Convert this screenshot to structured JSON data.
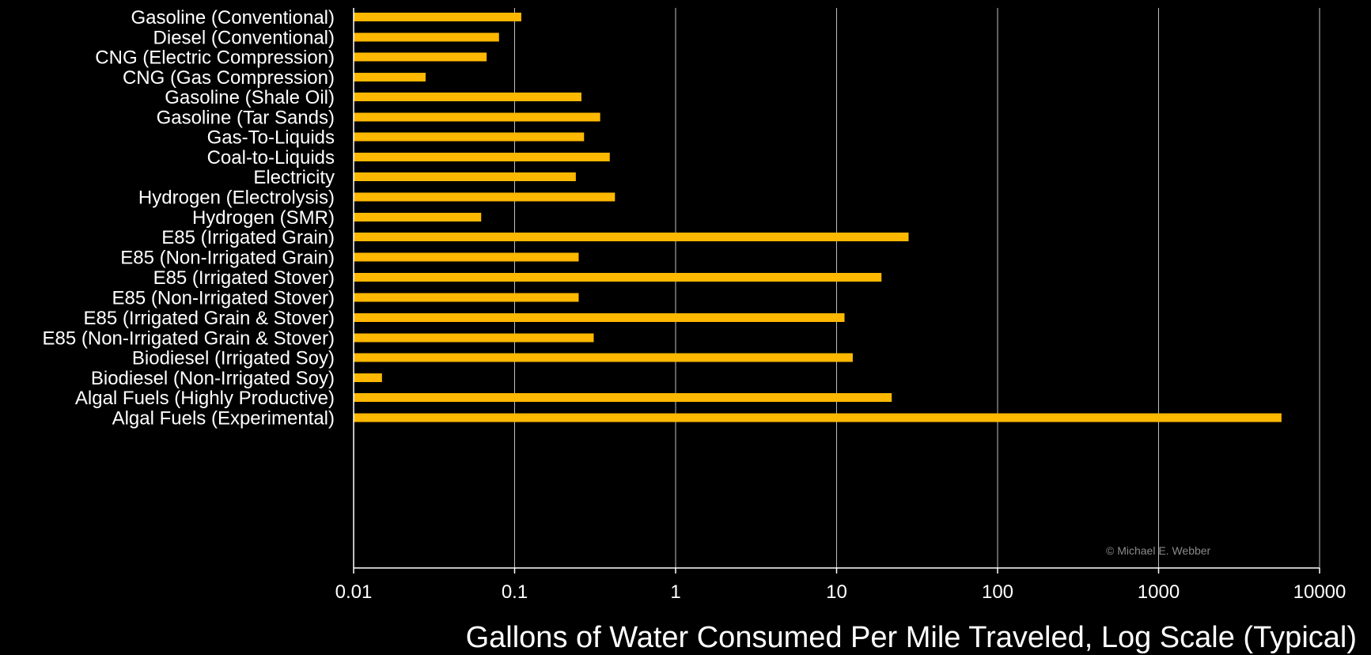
{
  "chart_data": {
    "type": "bar",
    "orientation": "horizontal",
    "xscale": "log",
    "xlim": [
      0.01,
      10000
    ],
    "xticks": [
      "0.01",
      "0.1",
      "1",
      "10",
      "100",
      "1000",
      "10000"
    ],
    "xlabel": "Gallons of Water Consumed Per Mile Traveled, Log Scale (Typical)",
    "ylabel": "",
    "title": "",
    "grid": "vertical",
    "legend": "none",
    "bar_color": "#FFB800",
    "background": "#000000",
    "annotation": "© Michael E. Webber",
    "groups": [
      {
        "items": [
          {
            "label": "Gasoline (Conventional)",
            "value": 0.11
          },
          {
            "label": "Diesel (Conventional)",
            "value": 0.08
          }
        ]
      },
      {
        "items": [
          {
            "label": "CNG (Electric Compression)",
            "value": 0.067
          },
          {
            "label": "CNG (Gas Compression)",
            "value": 0.028
          }
        ]
      },
      {
        "items": [
          {
            "label": "Gasoline (Shale Oil)",
            "value": 0.26
          },
          {
            "label": "Gasoline (Tar Sands)",
            "value": 0.34
          }
        ]
      },
      {
        "items": [
          {
            "label": "Gas-To-Liquids",
            "value": 0.27
          },
          {
            "label": "Coal-to-Liquids",
            "value": 0.39
          }
        ]
      },
      {
        "items": [
          {
            "label": "Electricity",
            "value": 0.24
          },
          {
            "label": "Hydrogen (Electrolysis)",
            "value": 0.42
          },
          {
            "label": "Hydrogen (SMR)",
            "value": 0.062
          }
        ]
      },
      {
        "items": [
          {
            "label": "E85 (Irrigated Grain)",
            "value": 28
          },
          {
            "label": "E85 (Non-Irrigated Grain)",
            "value": 0.25
          },
          {
            "label": "E85 (Irrigated Stover)",
            "value": 19
          },
          {
            "label": "E85 (Non-Irrigated Stover)",
            "value": 0.25
          },
          {
            "label": "E85 (Irrigated Grain & Stover)",
            "value": 11.2
          },
          {
            "label": "E85 (Non-Irrigated Grain & Stover)",
            "value": 0.31
          }
        ]
      },
      {
        "items": [
          {
            "label": "Biodiesel (Irrigated Soy)",
            "value": 12.6
          },
          {
            "label": "Biodiesel (Non-Irrigated Soy)",
            "value": 0.015
          }
        ]
      },
      {
        "items": [
          {
            "label": "Algal Fuels (Highly Productive)",
            "value": 22
          },
          {
            "label": "Algal Fuels (Experimental)",
            "value": 5800
          }
        ]
      }
    ]
  }
}
